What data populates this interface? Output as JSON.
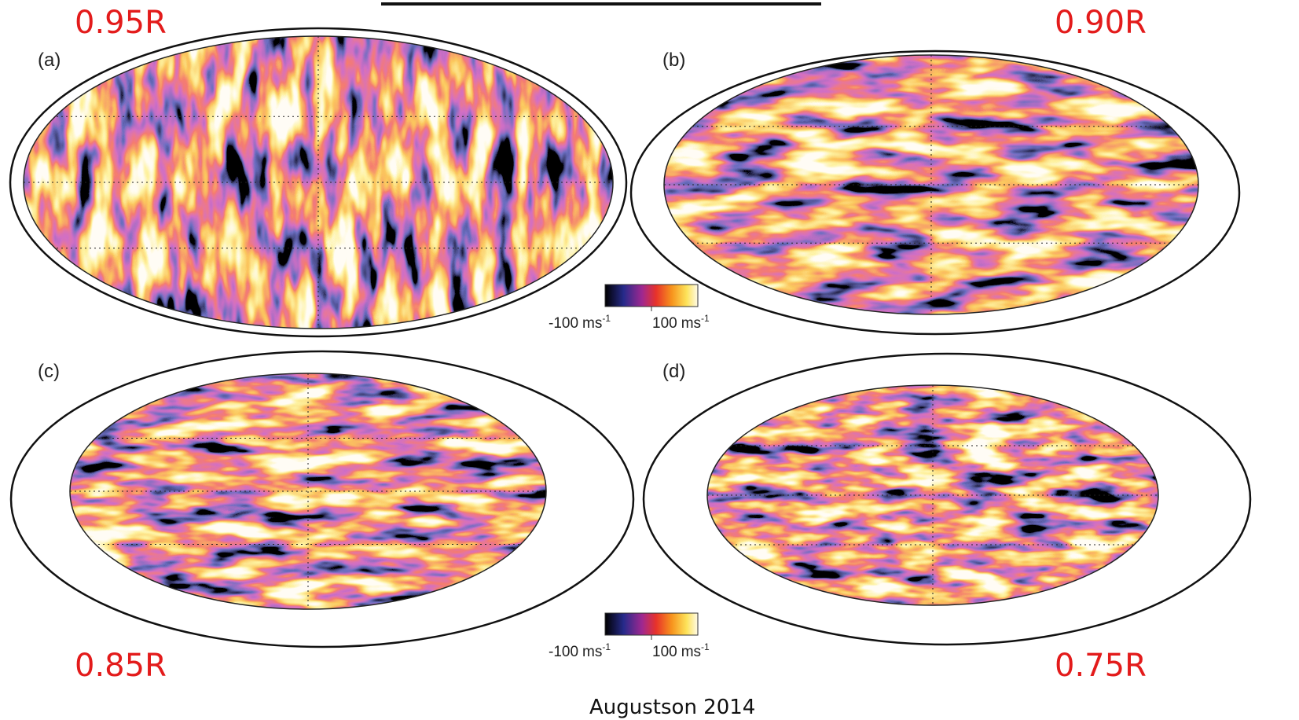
{
  "slide": {
    "credit": "Augustson 2014"
  },
  "panels": [
    {
      "tag": "(a)",
      "radius": "0.95R"
    },
    {
      "tag": "(b)",
      "radius": "0.90R"
    },
    {
      "tag": "(c)",
      "radius": "0.85R"
    },
    {
      "tag": "(d)",
      "radius": "0.75R"
    }
  ],
  "colorbars": [
    {
      "min": "-100",
      "max": "100",
      "unit": "ms",
      "exponent": "-1"
    },
    {
      "min": "-100",
      "max": "100",
      "unit": "ms",
      "exponent": "-1"
    }
  ]
}
